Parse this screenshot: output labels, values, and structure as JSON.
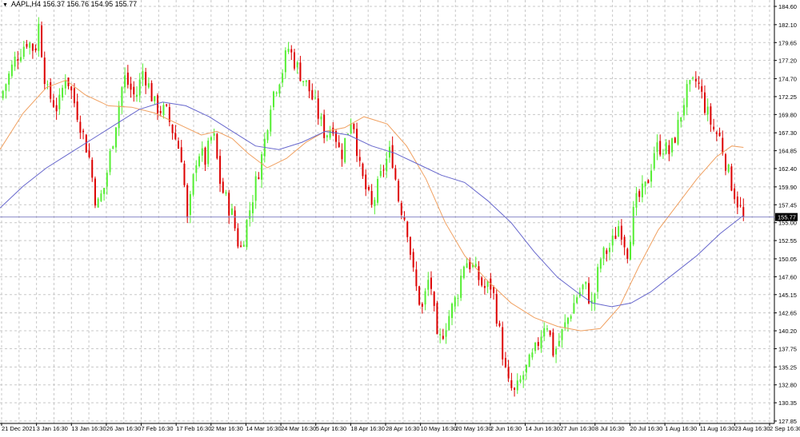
{
  "header": {
    "symbol": "AAPL,H4",
    "ohlc": "156.37 156.76 154.95 155.77"
  },
  "colors": {
    "bull": "#55ee33",
    "bear": "#dd0000",
    "ma_fast": "#f0a060",
    "ma_slow": "#6666cc",
    "price_line": "#8a8ac8",
    "grid": "#c8c8c8",
    "price_tag_bg": "#000000"
  },
  "chart_data": {
    "type": "candlestick",
    "instrument": "AAPL",
    "timeframe": "H4",
    "last_price": 155.77,
    "ylim": [
      127.85,
      184.6
    ],
    "y_ticks": [
      184.6,
      182.1,
      179.65,
      177.2,
      174.7,
      172.25,
      169.8,
      167.3,
      164.85,
      162.4,
      159.9,
      157.45,
      155.0,
      152.55,
      150.05,
      147.6,
      145.15,
      142.65,
      140.2,
      137.75,
      135.25,
      132.8,
      130.35,
      127.85
    ],
    "x_labels": [
      "21 Dec 2021",
      "3 Jan 16:30",
      "13 Jan 16:30",
      "26 Jan 16:30",
      "7 Feb 16:30",
      "17 Feb 16:30",
      "2 Mar 16:30",
      "14 Mar 16:30",
      "24 Mar 16:30",
      "5 Apr 16:30",
      "18 Apr 16:30",
      "28 Apr 16:30",
      "10 May 16:30",
      "20 May 16:30",
      "2 Jun 16:30",
      "14 Jun 16:30",
      "27 Jun 16:30",
      "8 Jul 16:30",
      "20 Jul 16:30",
      "1 Aug 16:30",
      "11 Aug 16:30",
      "23 Aug 16:30",
      "2 Sep 16:30"
    ],
    "close_path": [
      [
        0,
        172.0
      ],
      [
        0.02,
        177.5
      ],
      [
        0.035,
        180.0
      ],
      [
        0.045,
        178.5
      ],
      [
        0.05,
        182.0
      ],
      [
        0.06,
        173.0
      ],
      [
        0.075,
        170.5
      ],
      [
        0.085,
        175.5
      ],
      [
        0.1,
        170.0
      ],
      [
        0.115,
        164.0
      ],
      [
        0.125,
        157.0
      ],
      [
        0.135,
        160.0
      ],
      [
        0.145,
        166.0
      ],
      [
        0.16,
        175.0
      ],
      [
        0.175,
        172.0
      ],
      [
        0.185,
        176.0
      ],
      [
        0.2,
        171.0
      ],
      [
        0.215,
        170.0
      ],
      [
        0.225,
        167.0
      ],
      [
        0.235,
        164.0
      ],
      [
        0.242,
        155.0
      ],
      [
        0.255,
        165.0
      ],
      [
        0.265,
        163.5
      ],
      [
        0.275,
        167.5
      ],
      [
        0.285,
        160.0
      ],
      [
        0.3,
        156.0
      ],
      [
        0.31,
        151.0
      ],
      [
        0.325,
        158.0
      ],
      [
        0.34,
        165.0
      ],
      [
        0.35,
        172.0
      ],
      [
        0.365,
        176.0
      ],
      [
        0.372,
        179.0
      ],
      [
        0.385,
        176.0
      ],
      [
        0.4,
        173.0
      ],
      [
        0.41,
        170.0
      ],
      [
        0.42,
        167.0
      ],
      [
        0.43,
        168.5
      ],
      [
        0.44,
        164.0
      ],
      [
        0.455,
        170.0
      ],
      [
        0.465,
        162.0
      ],
      [
        0.48,
        157.0
      ],
      [
        0.495,
        162.5
      ],
      [
        0.505,
        165.0
      ],
      [
        0.515,
        158.0
      ],
      [
        0.525,
        155.0
      ],
      [
        0.535,
        147.0
      ],
      [
        0.545,
        143.0
      ],
      [
        0.555,
        148.0
      ],
      [
        0.565,
        138.0
      ],
      [
        0.575,
        141.0
      ],
      [
        0.59,
        145.0
      ],
      [
        0.6,
        150.0
      ],
      [
        0.61,
        149.0
      ],
      [
        0.625,
        146.0
      ],
      [
        0.635,
        146.5
      ],
      [
        0.645,
        140.0
      ],
      [
        0.655,
        133.0
      ],
      [
        0.665,
        131.5
      ],
      [
        0.675,
        134.0
      ],
      [
        0.69,
        137.0
      ],
      [
        0.705,
        142.0
      ],
      [
        0.715,
        137.0
      ],
      [
        0.73,
        141.0
      ],
      [
        0.745,
        145.0
      ],
      [
        0.755,
        146.5
      ],
      [
        0.765,
        143.5
      ],
      [
        0.775,
        150.0
      ],
      [
        0.79,
        152.0
      ],
      [
        0.8,
        155.0
      ],
      [
        0.81,
        151.0
      ],
      [
        0.82,
        157.5
      ],
      [
        0.835,
        160.0
      ],
      [
        0.845,
        165.0
      ],
      [
        0.855,
        165.5
      ],
      [
        0.865,
        164.5
      ],
      [
        0.875,
        168.0
      ],
      [
        0.885,
        172.5
      ],
      [
        0.9,
        174.5
      ],
      [
        0.91,
        171.0
      ],
      [
        0.92,
        168.0
      ],
      [
        0.93,
        166.5
      ],
      [
        0.94,
        162.0
      ],
      [
        0.95,
        158.5
      ],
      [
        0.96,
        155.77
      ]
    ],
    "ma_fast_path": [
      [
        0,
        165.0
      ],
      [
        0.03,
        170.0
      ],
      [
        0.06,
        173.5
      ],
      [
        0.085,
        174.5
      ],
      [
        0.11,
        172.5
      ],
      [
        0.14,
        171.0
      ],
      [
        0.17,
        170.8
      ],
      [
        0.2,
        170.0
      ],
      [
        0.23,
        168.5
      ],
      [
        0.26,
        167.0
      ],
      [
        0.28,
        167.5
      ],
      [
        0.3,
        166.5
      ],
      [
        0.32,
        164.5
      ],
      [
        0.345,
        162.5
      ],
      [
        0.37,
        163.8
      ],
      [
        0.395,
        166.0
      ],
      [
        0.42,
        167.5
      ],
      [
        0.445,
        168.0
      ],
      [
        0.47,
        169.5
      ],
      [
        0.5,
        168.5
      ],
      [
        0.525,
        165.5
      ],
      [
        0.55,
        161.0
      ],
      [
        0.575,
        155.0
      ],
      [
        0.6,
        150.5
      ],
      [
        0.63,
        147.0
      ],
      [
        0.66,
        144.0
      ],
      [
        0.69,
        142.0
      ],
      [
        0.72,
        140.8
      ],
      [
        0.75,
        140.2
      ],
      [
        0.775,
        140.5
      ],
      [
        0.8,
        143.5
      ],
      [
        0.825,
        149.0
      ],
      [
        0.85,
        154.0
      ],
      [
        0.875,
        157.5
      ],
      [
        0.9,
        161.0
      ],
      [
        0.925,
        164.0
      ],
      [
        0.945,
        165.5
      ],
      [
        0.96,
        165.3
      ]
    ],
    "ma_slow_path": [
      [
        0,
        157.0
      ],
      [
        0.03,
        160.0
      ],
      [
        0.06,
        162.5
      ],
      [
        0.09,
        164.5
      ],
      [
        0.12,
        166.5
      ],
      [
        0.15,
        168.5
      ],
      [
        0.18,
        170.5
      ],
      [
        0.21,
        171.5
      ],
      [
        0.24,
        171.0
      ],
      [
        0.27,
        169.5
      ],
      [
        0.3,
        167.5
      ],
      [
        0.33,
        165.5
      ],
      [
        0.36,
        165.0
      ],
      [
        0.39,
        166.0
      ],
      [
        0.42,
        167.5
      ],
      [
        0.45,
        167.0
      ],
      [
        0.48,
        165.5
      ],
      [
        0.51,
        164.5
      ],
      [
        0.54,
        163.0
      ],
      [
        0.57,
        161.5
      ],
      [
        0.6,
        160.5
      ],
      [
        0.63,
        158.0
      ],
      [
        0.66,
        155.0
      ],
      [
        0.69,
        151.0
      ],
      [
        0.72,
        147.5
      ],
      [
        0.745,
        145.5
      ],
      [
        0.765,
        144.0
      ],
      [
        0.79,
        143.5
      ],
      [
        0.815,
        144.0
      ],
      [
        0.84,
        145.5
      ],
      [
        0.87,
        148.0
      ],
      [
        0.9,
        150.5
      ],
      [
        0.93,
        153.5
      ],
      [
        0.96,
        156.0
      ]
    ]
  }
}
